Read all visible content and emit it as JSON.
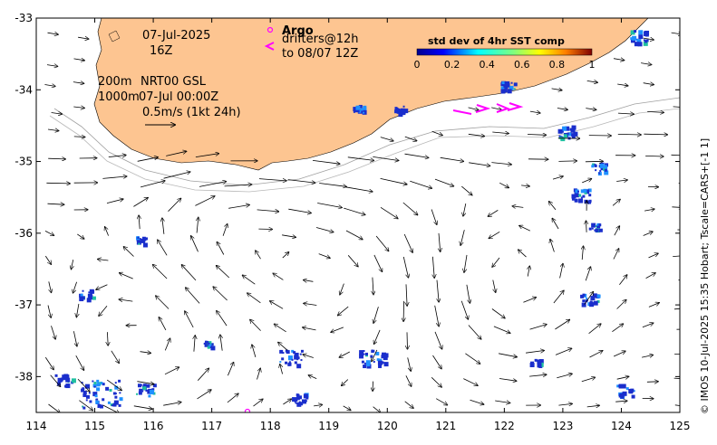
{
  "axes": {
    "x_ticks": [
      "114",
      "115",
      "116",
      "117",
      "118",
      "119",
      "120",
      "121",
      "122",
      "123",
      "124",
      "125"
    ],
    "y_ticks": [
      "-33",
      "-34",
      "-35",
      "-36",
      "-37",
      "-38"
    ],
    "x_range": [
      114,
      125
    ],
    "y_range": [
      -38.5,
      -33
    ]
  },
  "annotations": {
    "date": "07-Jul-2025",
    "hour": "16Z",
    "isobath_200": "200m",
    "product": "NRT00 GSL",
    "isobath_1000": "1000m",
    "analysis_time": "07-Jul 00:00Z",
    "scale_label": "0.5m/s (1kt 24h)"
  },
  "legend": {
    "argo_label": "Argo",
    "drifters_label": "drifters@12h",
    "drifters_until": "to 08/07 12Z",
    "argo_color": "#ff00ff",
    "drifter_color": "#ff00ff"
  },
  "colorbar": {
    "title": "std dev of 4hr SST comp",
    "ticks": [
      "0",
      "0.2",
      "0.4",
      "0.6",
      "0.8",
      "1"
    ]
  },
  "credit": "© IMOS 10-Jul-2025 15:35 Hobart; Tscale=CARS+[-1 1]",
  "colors": {
    "land": "#fdc591",
    "sst_patch": "#1a2ecc"
  }
}
